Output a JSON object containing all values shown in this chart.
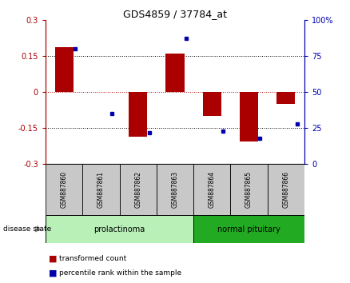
{
  "title": "GDS4859 / 37784_at",
  "samples": [
    "GSM887860",
    "GSM887861",
    "GSM887862",
    "GSM887863",
    "GSM887864",
    "GSM887865",
    "GSM887866"
  ],
  "red_values": [
    0.185,
    0.0,
    -0.185,
    0.16,
    -0.1,
    -0.205,
    -0.05
  ],
  "blue_values": [
    80,
    35,
    22,
    87,
    23,
    18,
    28
  ],
  "ylim_left": [
    -0.3,
    0.3
  ],
  "ylim_right": [
    0,
    100
  ],
  "yticks_left": [
    -0.3,
    -0.15,
    0,
    0.15,
    0.3
  ],
  "ytick_labels_left": [
    "-0.3",
    "-0.15",
    "0",
    "0.15",
    "0.3"
  ],
  "yticks_right": [
    0,
    25,
    50,
    75,
    100
  ],
  "ytick_labels_right": [
    "0",
    "25",
    "50",
    "75",
    "100%"
  ],
  "groups": [
    {
      "label": "prolactinoma",
      "start": 0,
      "end": 3,
      "light_color": "#b8f0b8",
      "dark_color": "#90ee90"
    },
    {
      "label": "normal pituitary",
      "start": 4,
      "end": 6,
      "light_color": "#44cc44",
      "dark_color": "#22aa22"
    }
  ],
  "disease_state_label": "disease state",
  "legend_red": "transformed count",
  "legend_blue": "percentile rank within the sample",
  "bar_color": "#aa0000",
  "dot_color": "#0000aa",
  "bg_color": "#ffffff",
  "sample_box_color": "#c8c8c8",
  "bar_width": 0.5
}
